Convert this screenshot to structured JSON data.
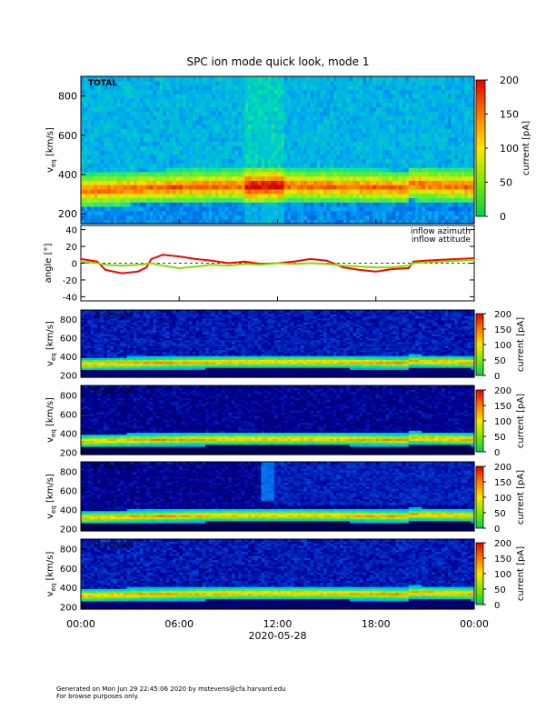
{
  "title": "SPC ion mode quick look, mode 1",
  "footer": {
    "line1": "Generated on Mon Jun 29 22:45:06 2020 by mstevens@cfa.harvard.edu",
    "line2": "For browse purposes only."
  },
  "chart_data": [
    {
      "type": "heatmap",
      "panel": "TOTAL",
      "label": "TOTAL",
      "ylabel": "v_eq [km/s]",
      "ylim": [
        150,
        900
      ],
      "yticks": [
        200,
        400,
        600,
        800
      ],
      "colorbar": {
        "label": "current [pA]",
        "range": [
          0,
          200
        ],
        "ticks": [
          0,
          50,
          100,
          150,
          200
        ]
      },
      "band_center_kms": [
        315,
        320,
        330,
        335,
        340,
        345,
        338,
        330,
        328,
        320,
        318,
        315,
        322,
        340,
        350,
        345,
        342
      ],
      "band_time_hours": [
        0,
        1.5,
        3,
        4.5,
        6,
        7.5,
        9,
        10.5,
        12,
        13.5,
        15,
        16.5,
        18,
        19.5,
        21,
        22.5,
        24
      ]
    },
    {
      "type": "line",
      "panel": "angle",
      "ylabel": "angle [°]",
      "ylim": [
        -45,
        45
      ],
      "yticks": [
        -40,
        -20,
        0,
        20,
        40
      ],
      "series": [
        {
          "name": "inflow azimuth",
          "color": "#ff0000",
          "x": [
            0,
            1,
            1.5,
            2.5,
            3.5,
            4,
            4.3,
            5,
            6,
            7,
            8,
            9,
            10,
            11,
            12,
            13,
            14,
            15,
            16,
            17,
            18,
            19,
            20,
            20.3,
            21,
            22,
            23,
            24
          ],
          "y": [
            5,
            2,
            -8,
            -12,
            -10,
            -5,
            5,
            10,
            8,
            5,
            3,
            0,
            2,
            -1,
            0,
            2,
            5,
            3,
            -5,
            -8,
            -10,
            -7,
            -6,
            2,
            3,
            4,
            5,
            6
          ]
        },
        {
          "name": "inflow attitude",
          "color": "#7fe000",
          "x": [
            0,
            1,
            1.5,
            2.5,
            3.5,
            4,
            4.3,
            5,
            6,
            7,
            8,
            9,
            10,
            11,
            12,
            13,
            14,
            15,
            16,
            17,
            18,
            19,
            20,
            20.3,
            21,
            22,
            23,
            24
          ],
          "y": [
            2,
            0,
            -2,
            -3,
            -2,
            -1,
            0,
            -3,
            -6,
            -4,
            -2,
            -3,
            -1,
            -2,
            0,
            -1,
            0,
            -1,
            -3,
            -4,
            -5,
            -5,
            -3,
            0,
            1,
            2,
            3,
            4
          ]
        }
      ]
    },
    {
      "type": "heatmap",
      "panel": "A sensor",
      "label": "A sensor",
      "ylabel": "v_eq [km/s]",
      "ylim": [
        175,
        900
      ],
      "yticks": [
        200,
        400,
        600,
        800
      ],
      "colorbar": {
        "label": "current [pA]",
        "range": [
          0,
          200
        ],
        "ticks": [
          0,
          50,
          100,
          150,
          200
        ]
      }
    },
    {
      "type": "heatmap",
      "panel": "B sensor",
      "label": "B sensor",
      "ylabel": "v_eq [km/s]",
      "ylim": [
        175,
        900
      ],
      "yticks": [
        200,
        400,
        600,
        800
      ],
      "colorbar": {
        "label": "current [pA]",
        "range": [
          0,
          200
        ],
        "ticks": [
          0,
          50,
          100,
          150,
          200
        ]
      }
    },
    {
      "type": "heatmap",
      "panel": "C sensor",
      "label": "C sensor",
      "ylabel": "v_eq [km/s]",
      "ylim": [
        175,
        900
      ],
      "yticks": [
        200,
        400,
        600,
        800
      ],
      "colorbar": {
        "label": "current [pA]",
        "range": [
          0,
          200
        ],
        "ticks": [
          0,
          50,
          100,
          150,
          200
        ]
      }
    },
    {
      "type": "heatmap",
      "panel": "D sensor",
      "label": "D sensor",
      "ylabel": "v_eq [km/s]",
      "ylim": [
        175,
        900
      ],
      "yticks": [
        200,
        400,
        600,
        800
      ],
      "colorbar": {
        "label": "current [pA]",
        "range": [
          0,
          200
        ],
        "ticks": [
          0,
          50,
          100,
          150,
          200
        ]
      }
    }
  ],
  "xaxis": {
    "ticks": [
      "00:00",
      "06:00",
      "12:00",
      "18:00",
      "00:00"
    ],
    "tick_hours": [
      0,
      6,
      12,
      18,
      24
    ],
    "date_label": "2020-05-28"
  }
}
